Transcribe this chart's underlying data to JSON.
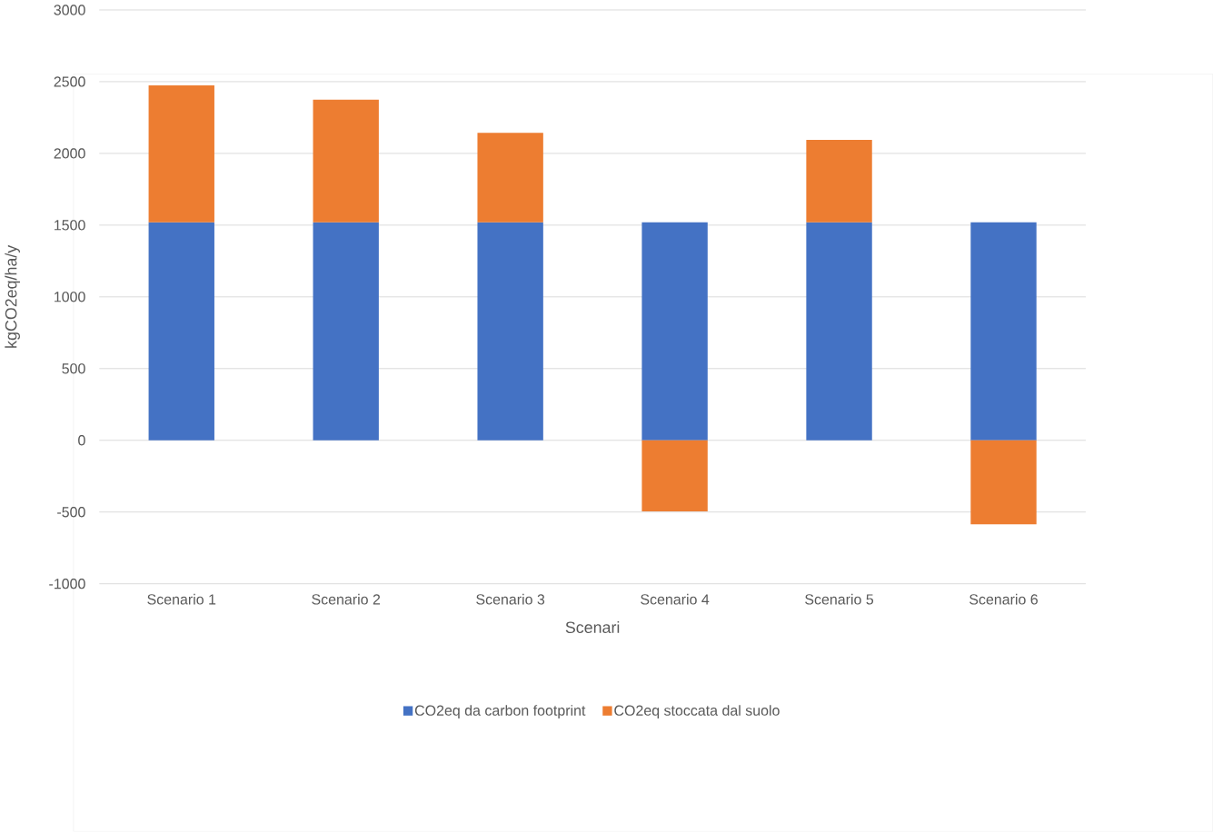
{
  "chart_data": {
    "type": "bar",
    "stacked": true,
    "xlabel": "Scenari",
    "ylabel": "kgCO2eq/ha/y",
    "categories": [
      "Scenario 1",
      "Scenario 2",
      "Scenario 3",
      "Scenario 4",
      "Scenario 5",
      "Scenario 6"
    ],
    "series": [
      {
        "name": "CO2eq da carbon footprint",
        "color": "#4472c4",
        "values": [
          1520,
          1520,
          1520,
          1520,
          1520,
          1520
        ]
      },
      {
        "name": "CO2eq stoccata dal suolo",
        "color": "#ed7d31",
        "values": [
          955,
          855,
          623,
          -495,
          575,
          -585
        ]
      }
    ],
    "ylim": [
      -1000,
      3000
    ],
    "yticks": [
      -1000,
      -500,
      0,
      500,
      1000,
      1500,
      2000,
      2500,
      3000
    ],
    "grid": "y",
    "legend": "bottom"
  }
}
